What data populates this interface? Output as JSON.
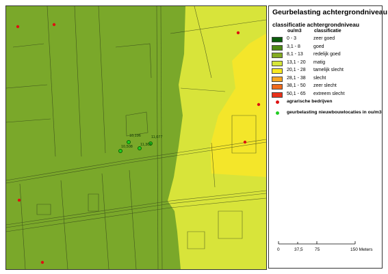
{
  "legend": {
    "title": "Geurbelasting achtergrondniveau",
    "subtitle": "classificatie achtergrondniveau",
    "col_unit": "ou/m3",
    "col_class": "classificatie",
    "classes": [
      {
        "range": "0 - 3",
        "label": "zeer goed",
        "color": "#0b5d0b"
      },
      {
        "range": "3,1 - 8",
        "label": "goed",
        "color": "#4e8a14"
      },
      {
        "range": "8,1 - 13",
        "label": "redelijk goed",
        "color": "#84ab22"
      },
      {
        "range": "13,1 - 20",
        "label": "matig",
        "color": "#d6e63a"
      },
      {
        "range": "20,1 - 28",
        "label": "tamelijk slecht",
        "color": "#f8e821"
      },
      {
        "range": "28,1 - 38",
        "label": "slecht",
        "color": "#f7a623"
      },
      {
        "range": "38,1 - 50",
        "label": "zeer slecht",
        "color": "#f06a1c"
      },
      {
        "range": "50,1 - 65",
        "label": "extreem slecht",
        "color": "#e8311a"
      }
    ],
    "point_legend": [
      {
        "label": "agrarische bedrijven",
        "color": "#dd1111"
      },
      {
        "label": "geurbelasting nieuwbouwlocaties in ou/m3",
        "color": "#22cc22"
      }
    ]
  },
  "scale_bar": {
    "ticks": [
      "0",
      "37,5",
      "75",
      "150 Meters"
    ]
  },
  "map": {
    "zone_colors": {
      "goed": "#7aa82a",
      "matig": "#d8e43a",
      "tamelijk_slecht": "#f4e62a"
    },
    "new_build_sites": [
      {
        "value": "10,196"
      },
      {
        "value": "11,077"
      },
      {
        "value": "10,508"
      },
      {
        "value": "11,309"
      }
    ],
    "farm_count": 7
  }
}
